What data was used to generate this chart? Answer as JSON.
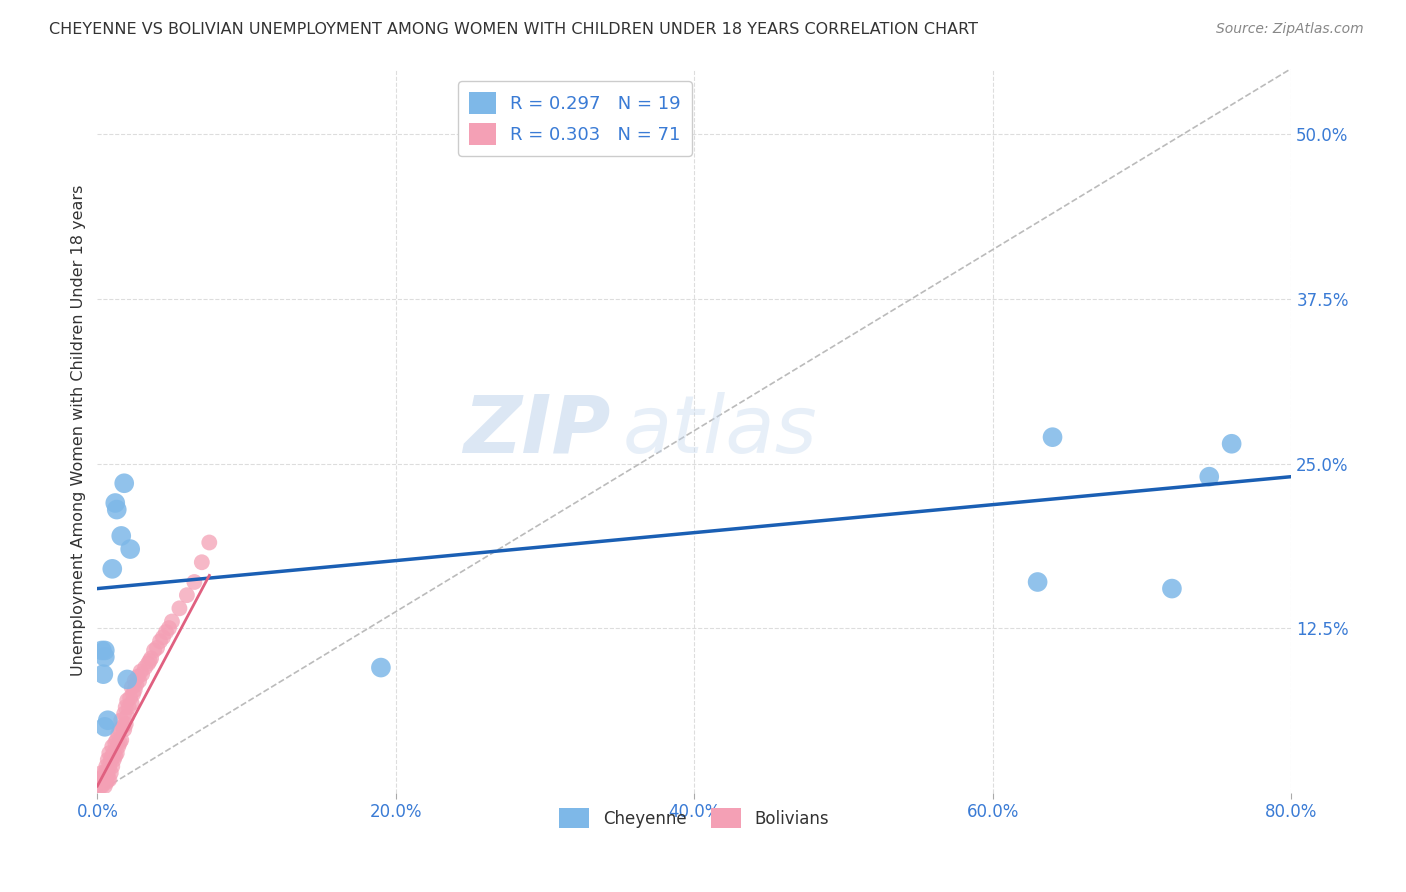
{
  "title": "CHEYENNE VS BOLIVIAN UNEMPLOYMENT AMONG WOMEN WITH CHILDREN UNDER 18 YEARS CORRELATION CHART",
  "source": "Source: ZipAtlas.com",
  "ylabel": "Unemployment Among Women with Children Under 18 years",
  "xlim": [
    0.0,
    0.8
  ],
  "ylim": [
    0.0,
    0.55
  ],
  "cheyenne_R": 0.297,
  "cheyenne_N": 19,
  "bolivian_R": 0.303,
  "bolivian_N": 71,
  "cheyenne_color": "#7eb8e8",
  "bolivian_color": "#f4a0b5",
  "cheyenne_line_color": "#1a5fb4",
  "bolivian_line_color": "#e06080",
  "ref_line_color": "#bbbbbb",
  "watermark_zip": "ZIP",
  "watermark_atlas": "atlas",
  "legend_color": "#3a7bd5",
  "background_color": "#ffffff",
  "grid_color": "#dddddd",
  "cheyenne_x": [
    0.012,
    0.013,
    0.018,
    0.016,
    0.022,
    0.01,
    0.005,
    0.003,
    0.005,
    0.004,
    0.005,
    0.007,
    0.02,
    0.19,
    0.63,
    0.64,
    0.72,
    0.745,
    0.76
  ],
  "cheyenne_y": [
    0.22,
    0.215,
    0.235,
    0.195,
    0.185,
    0.17,
    0.108,
    0.108,
    0.103,
    0.09,
    0.05,
    0.055,
    0.086,
    0.095,
    0.16,
    0.27,
    0.155,
    0.24,
    0.265
  ],
  "bolivian_x": [
    0.002,
    0.002,
    0.003,
    0.003,
    0.003,
    0.004,
    0.004,
    0.005,
    0.005,
    0.005,
    0.006,
    0.006,
    0.006,
    0.007,
    0.007,
    0.007,
    0.008,
    0.008,
    0.008,
    0.009,
    0.009,
    0.01,
    0.01,
    0.01,
    0.011,
    0.011,
    0.012,
    0.012,
    0.013,
    0.013,
    0.014,
    0.014,
    0.015,
    0.015,
    0.016,
    0.016,
    0.017,
    0.018,
    0.018,
    0.019,
    0.019,
    0.02,
    0.02,
    0.021,
    0.022,
    0.023,
    0.023,
    0.024,
    0.025,
    0.025,
    0.026,
    0.027,
    0.028,
    0.029,
    0.03,
    0.032,
    0.034,
    0.035,
    0.036,
    0.038,
    0.04,
    0.042,
    0.044,
    0.046,
    0.048,
    0.05,
    0.055,
    0.06,
    0.065,
    0.07,
    0.075
  ],
  "bolivian_y": [
    0.005,
    0.01,
    0.005,
    0.01,
    0.015,
    0.008,
    0.012,
    0.005,
    0.01,
    0.015,
    0.008,
    0.012,
    0.02,
    0.01,
    0.015,
    0.025,
    0.01,
    0.02,
    0.03,
    0.015,
    0.025,
    0.02,
    0.028,
    0.035,
    0.025,
    0.03,
    0.028,
    0.038,
    0.03,
    0.04,
    0.035,
    0.045,
    0.038,
    0.048,
    0.04,
    0.055,
    0.05,
    0.048,
    0.06,
    0.052,
    0.065,
    0.058,
    0.07,
    0.065,
    0.072,
    0.068,
    0.08,
    0.075,
    0.078,
    0.085,
    0.082,
    0.088,
    0.085,
    0.092,
    0.09,
    0.095,
    0.098,
    0.1,
    0.102,
    0.108,
    0.11,
    0.115,
    0.118,
    0.122,
    0.125,
    0.13,
    0.14,
    0.15,
    0.16,
    0.175,
    0.19
  ],
  "bolivian_trend_x": [
    0.0,
    0.075
  ],
  "bolivian_trend_y_start": 0.005,
  "bolivian_trend_y_end": 0.165,
  "cheyenne_trend_x": [
    0.0,
    0.8
  ],
  "cheyenne_trend_y_start": 0.155,
  "cheyenne_trend_y_end": 0.24
}
